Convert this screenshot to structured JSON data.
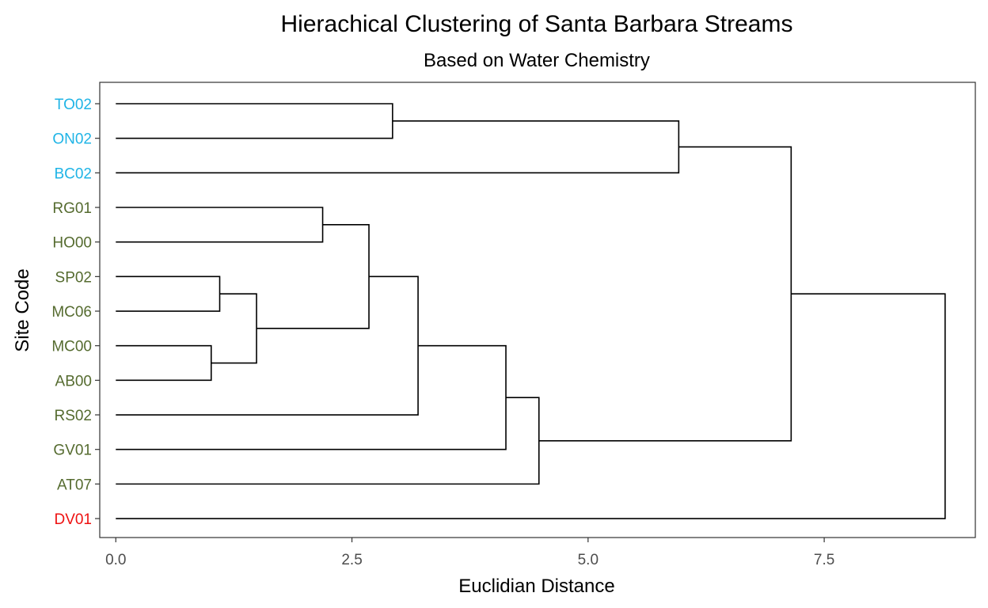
{
  "chart_data": {
    "type": "dendrogram",
    "title": "Hierachical Clustering of Santa Barbara Streams",
    "subtitle": "Based on Water Chemistry",
    "xlabel": "Euclidian Distance",
    "ylabel": "Site Code",
    "xlim": [
      -0.17,
      9.1
    ],
    "x_ticks": [
      0,
      2.5,
      5,
      7.5
    ],
    "x_tick_labels": [
      "0.0",
      "2.5",
      "5.0",
      "7.5"
    ],
    "grid": false,
    "leaves": [
      {
        "label": "TO02",
        "color": "#1fb4e6"
      },
      {
        "label": "ON02",
        "color": "#1fb4e6"
      },
      {
        "label": "BC02",
        "color": "#1fb4e6"
      },
      {
        "label": "RG01",
        "color": "#556b2f"
      },
      {
        "label": "HO00",
        "color": "#556b2f"
      },
      {
        "label": "SP02",
        "color": "#556b2f"
      },
      {
        "label": "MC06",
        "color": "#556b2f"
      },
      {
        "label": "MC00",
        "color": "#556b2f"
      },
      {
        "label": "AB00",
        "color": "#556b2f"
      },
      {
        "label": "RS02",
        "color": "#556b2f"
      },
      {
        "label": "GV01",
        "color": "#556b2f"
      },
      {
        "label": "AT07",
        "color": "#556b2f"
      },
      {
        "label": "DV01",
        "color": "#ee1111"
      }
    ],
    "merges": [
      {
        "members": [
          "TO02",
          "ON02"
        ],
        "height": 2.93
      },
      {
        "members": [
          "TO02+ON02",
          "BC02"
        ],
        "height": 5.96
      },
      {
        "members": [
          "RG01",
          "HO00"
        ],
        "height": 2.19
      },
      {
        "members": [
          "SP02",
          "MC06"
        ],
        "height": 1.1
      },
      {
        "members": [
          "MC00",
          "AB00"
        ],
        "height": 1.01
      },
      {
        "members": [
          "SP02+MC06",
          "MC00+AB00"
        ],
        "height": 1.49
      },
      {
        "members": [
          "RG01+HO00",
          "SP02+MC06+MC00+AB00"
        ],
        "height": 2.68
      },
      {
        "members": [
          "RG01+HO00+SP02+MC06+MC00+AB00",
          "RS02"
        ],
        "height": 3.2
      },
      {
        "members": [
          "RG01+HO00+SP02+MC06+MC00+AB00+RS02",
          "GV01"
        ],
        "height": 4.13
      },
      {
        "members": [
          "RG01+HO00+SP02+MC06+MC00+AB00+RS02+GV01",
          "AT07"
        ],
        "height": 4.48
      },
      {
        "members": [
          "TO02+ON02+BC02",
          "RG01+HO00+SP02+MC06+MC00+AB00+RS02+GV01+AT07"
        ],
        "height": 7.15
      },
      {
        "members": [
          "TO02+ON02+BC02+RG01+HO00+SP02+MC06+MC00+AB00+RS02+GV01+AT07",
          "DV01"
        ],
        "height": 8.78
      }
    ]
  }
}
